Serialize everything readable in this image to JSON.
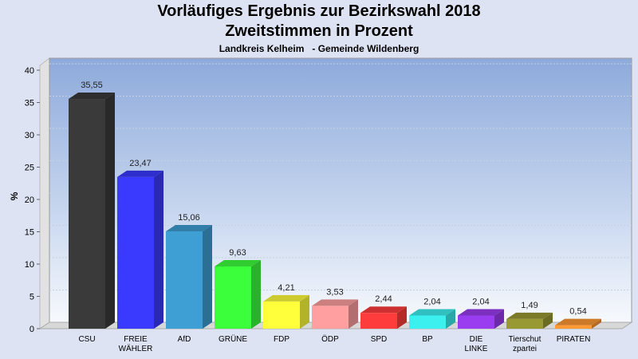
{
  "chart_data": {
    "type": "bar",
    "title": "Vorläufiges Ergebnis zur Bezirkswahl 2018",
    "subtitle": "Zweitstimmen in Prozent",
    "subsubtitle": "Landkreis Kelheim   - Gemeinde Wildenberg",
    "xlabel": "",
    "ylabel": "%",
    "ylim": [
      0,
      40
    ],
    "yticks": [
      0,
      5,
      10,
      15,
      20,
      25,
      30,
      35,
      40
    ],
    "grid": true,
    "categories": [
      [
        "CSU"
      ],
      [
        "FREIE",
        "WÄHLER"
      ],
      [
        "AfD"
      ],
      [
        "GRÜNE"
      ],
      [
        "FDP"
      ],
      [
        "ÖDP"
      ],
      [
        "SPD"
      ],
      [
        "BP"
      ],
      [
        "DIE",
        "LINKE"
      ],
      [
        "Tierschut",
        "zpartei"
      ],
      [
        "PIRATEN"
      ]
    ],
    "values": [
      35.55,
      23.47,
      15.06,
      9.63,
      4.21,
      3.53,
      2.44,
      2.04,
      2.04,
      1.49,
      0.54
    ],
    "labels": [
      "35,55",
      "23,47",
      "15,06",
      "9,63",
      "4,21",
      "3,53",
      "2,44",
      "2,04",
      "2,04",
      "1,49",
      "0,54"
    ],
    "colors": [
      "#3a3a3a",
      "#3a3aff",
      "#3d9fd3",
      "#3cff3c",
      "#ffff3c",
      "#ff9f9f",
      "#ff3c3c",
      "#3cf0f0",
      "#9a3cf0",
      "#999933",
      "#ff9933"
    ]
  }
}
